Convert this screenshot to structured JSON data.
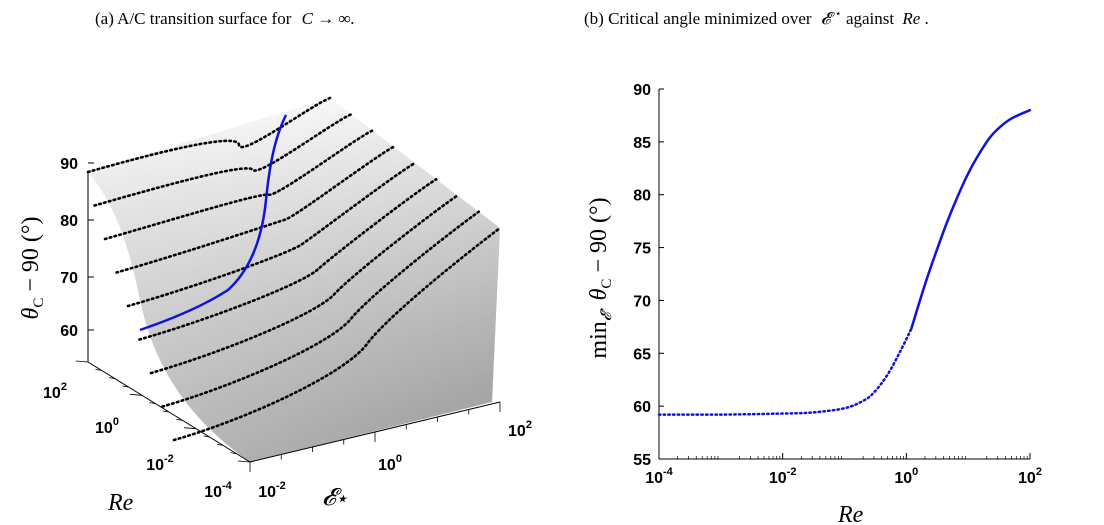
{
  "captions": {
    "a_prefix": "(a) A/C transition surface for",
    "a_math": "C → ∞.",
    "b_text": "(b) Critical angle minimized over",
    "b_sym": "𝓔",
    "b_sup": "⋆",
    "b_rest": " against",
    "b_re": "Re",
    "b_end": "."
  },
  "colors": {
    "curve": "#1010e0",
    "contour": "#000000",
    "surface_light": "#ffffff",
    "surface_dark": "#a8a8a8"
  },
  "chart_data": [
    {
      "id": "a",
      "type": "surface3d",
      "title": "(a) A/C transition surface for C → ∞.",
      "zlabel": "θc − 90 (°)",
      "xlabel": "𝓔⋆",
      "ylabel": "Re",
      "zticks": [
        "60",
        "70",
        "80",
        "90"
      ],
      "xticks": [
        {
          "base": "10",
          "exp": "-2"
        },
        {
          "base": "10",
          "exp": "0"
        },
        {
          "base": "10",
          "exp": "2"
        }
      ],
      "yticks": [
        {
          "base": "10",
          "exp": "-4"
        },
        {
          "base": "10",
          "exp": "-2"
        },
        {
          "base": "10",
          "exp": "0"
        },
        {
          "base": "10",
          "exp": "2"
        }
      ],
      "xlim": [
        0.01,
        100
      ],
      "ylim": [
        0.0001,
        100
      ],
      "zlim": [
        55,
        90
      ],
      "series": [
        {
          "style": "dotted contours (Re = const)",
          "count": 9
        },
        {
          "style": "solid blue curve (min over 𝓔⋆)"
        }
      ]
    },
    {
      "id": "b",
      "type": "line",
      "title": "(b) Critical angle minimized over 𝓔⋆ against Re.",
      "xlabel": "Re",
      "ylabel": "min𝓔⋆ θc − 90 (°)",
      "xscale": "log",
      "xlim": [
        0.0001,
        100
      ],
      "ylim": [
        55,
        90
      ],
      "yticks": [
        "55",
        "60",
        "65",
        "70",
        "75",
        "80",
        "85",
        "90"
      ],
      "xticks": [
        {
          "base": "10",
          "exp": "-4"
        },
        {
          "base": "10",
          "exp": "-2"
        },
        {
          "base": "10",
          "exp": "0"
        },
        {
          "base": "10",
          "exp": "2"
        }
      ],
      "series": [
        {
          "style": "dotted",
          "x": [
            0.0001,
            0.001,
            0.01,
            0.03,
            0.1,
            0.2,
            0.3,
            0.5,
            0.8,
            1.2
          ],
          "y": [
            59.2,
            59.2,
            59.3,
            59.4,
            59.8,
            60.5,
            61.3,
            63.0,
            65.2,
            67.3
          ]
        },
        {
          "style": "solid",
          "x": [
            1.2,
            2,
            3,
            5,
            10,
            20,
            30,
            50,
            100
          ],
          "y": [
            67.3,
            71.5,
            74.5,
            78.0,
            82.0,
            85.0,
            86.2,
            87.2,
            88.0
          ]
        }
      ]
    }
  ]
}
